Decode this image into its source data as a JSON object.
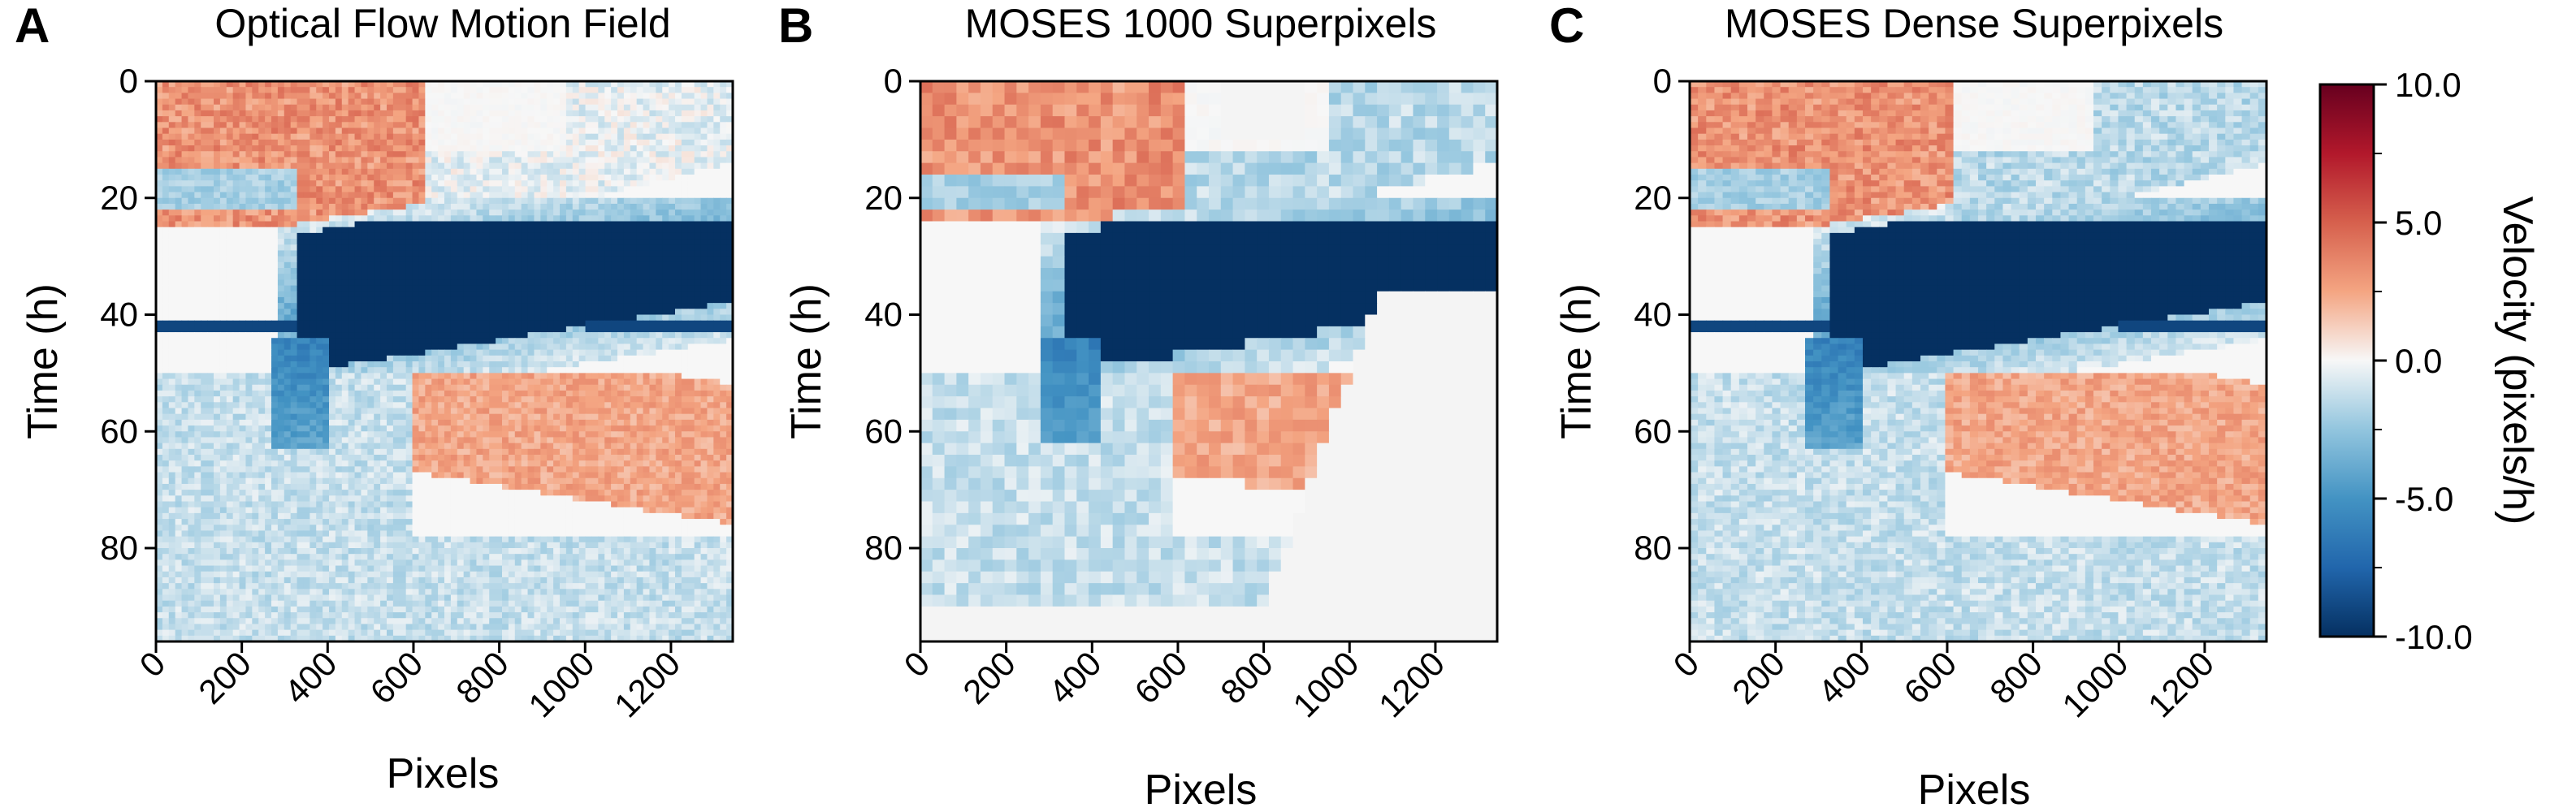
{
  "chart_data": [
    {
      "type": "heatmap",
      "panel": "A",
      "title": "Optical Flow Motion Field",
      "xlabel": "Pixels",
      "ylabel": "Time (h)",
      "xlim": [
        0,
        1344
      ],
      "ylim": [
        96,
        0
      ],
      "xticks": [
        "0",
        "200",
        "400",
        "600",
        "800",
        "1000",
        "1200"
      ],
      "yticks": [
        "0",
        "20",
        "40",
        "60",
        "80"
      ],
      "zlim": [
        -10,
        10
      ],
      "colormap": "RdBu_r",
      "features": [
        {
          "region": "upper-left, x 0-600, t 0-25 h",
          "velocity": 4
        },
        {
          "region": "upper-right above front, x 650-1344, t 0-12 h",
          "velocity": -0.5
        },
        {
          "region": "dense migrating front, x 350-1344, t 14-48 h",
          "velocity": -10
        },
        {
          "region": "tail below front, x 280-400, t 45-62 h",
          "velocity": -6
        },
        {
          "region": "lower-middle band, x 600-1344, t 50-75 h",
          "velocity": 3
        },
        {
          "region": "artifact line at t = 42 h",
          "velocity": -9
        }
      ]
    },
    {
      "type": "heatmap",
      "panel": "B",
      "title": "MOSES 1000 Superpixels",
      "xlabel": "Pixels",
      "ylabel": "Time (h)",
      "xlim": [
        0,
        1344
      ],
      "ylim": [
        96,
        0
      ],
      "xticks": [
        "0",
        "200",
        "400",
        "600",
        "800",
        "1000",
        "1200"
      ],
      "yticks": [
        "0",
        "20",
        "40",
        "60",
        "80"
      ],
      "zlim": [
        -10,
        10
      ],
      "colormap": "RdBu_r",
      "features": [
        {
          "region": "upper-left, x 0-620, t 0-25 h",
          "velocity": 4
        },
        {
          "region": "dense migrating front, x 320-1330, t 14-48 h",
          "velocity": -10
        },
        {
          "region": "lower-middle band, x 550-1100, t 50-80 h",
          "velocity": 3
        },
        {
          "region": "no data, x > 1100 after front",
          "velocity": null
        }
      ]
    },
    {
      "type": "heatmap",
      "panel": "C",
      "title": "MOSES Dense Superpixels",
      "xlabel": "Pixels",
      "ylabel": "Time (h)",
      "xlim": [
        0,
        1344
      ],
      "ylim": [
        96,
        0
      ],
      "xticks": [
        "0",
        "200",
        "400",
        "600",
        "800",
        "1000",
        "1200"
      ],
      "yticks": [
        "0",
        "20",
        "40",
        "60",
        "80"
      ],
      "zlim": [
        -10,
        10
      ],
      "colormap": "RdBu_r",
      "features": [
        {
          "region": "upper-left, x 0-600, t 0-25 h",
          "velocity": 4
        },
        {
          "region": "dense migrating front, x 300-1344, t 14-50 h",
          "velocity": -10
        },
        {
          "region": "lower-middle band, x 600-1344, t 50-80 h",
          "velocity": 3
        },
        {
          "region": "artifact line at t = 42 h",
          "velocity": -9
        }
      ]
    }
  ],
  "colorbar": {
    "label": "Velocity (pixels/h)",
    "ticks": [
      "10.0",
      "5.0",
      "0.0",
      "-5.0",
      "-10.0"
    ],
    "range": [
      -10,
      10
    ]
  }
}
